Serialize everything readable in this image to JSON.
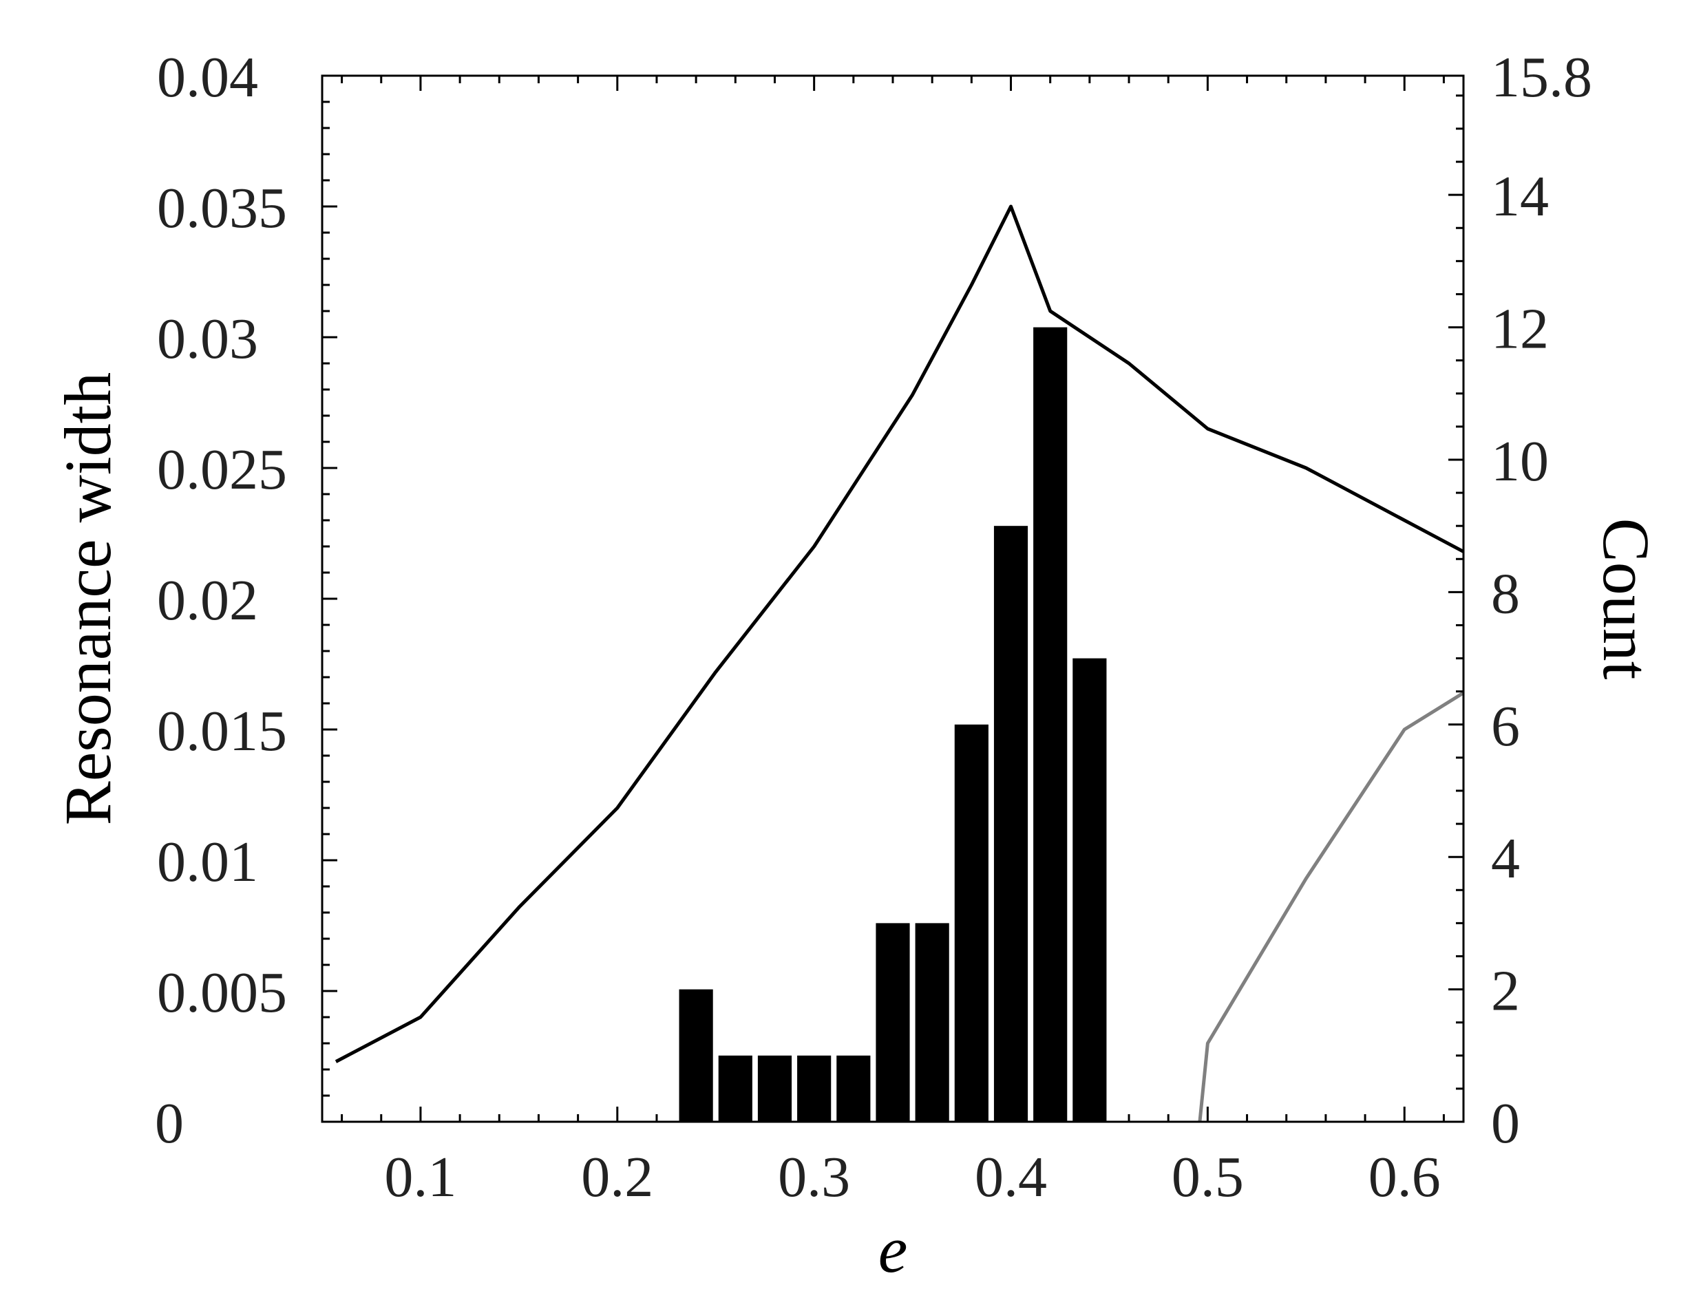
{
  "chart_data": {
    "type": "bar",
    "title": "",
    "xlabel": "e",
    "ylabel_left": "Resonance width",
    "ylabel_right": "Count",
    "xlim": [
      0.05,
      0.63
    ],
    "ylim_left": [
      0,
      0.04
    ],
    "ylim_right": [
      0,
      15.8
    ],
    "grid": false,
    "legend": "none",
    "x_ticks": [
      {
        "value": 0.1,
        "label": "0.1"
      },
      {
        "value": 0.2,
        "label": "0.2"
      },
      {
        "value": 0.3,
        "label": "0.3"
      },
      {
        "value": 0.4,
        "label": "0.4"
      },
      {
        "value": 0.5,
        "label": "0.5"
      },
      {
        "value": 0.6,
        "label": "0.6"
      }
    ],
    "y_left_ticks": [
      {
        "value": 0,
        "label": "0"
      },
      {
        "value": 0.005,
        "label": "0.005"
      },
      {
        "value": 0.01,
        "label": "0.01"
      },
      {
        "value": 0.015,
        "label": "0.015"
      },
      {
        "value": 0.02,
        "label": "0.02"
      },
      {
        "value": 0.025,
        "label": "0.025"
      },
      {
        "value": 0.03,
        "label": "0.03"
      },
      {
        "value": 0.035,
        "label": "0.035"
      },
      {
        "value": 0.04,
        "label": "0.04"
      }
    ],
    "y_right_ticks": [
      {
        "value": 0,
        "label": "0"
      },
      {
        "value": 2,
        "label": "2"
      },
      {
        "value": 4,
        "label": "4"
      },
      {
        "value": 6,
        "label": "6"
      },
      {
        "value": 8,
        "label": "8"
      },
      {
        "value": 10,
        "label": "10"
      },
      {
        "value": 12,
        "label": "12"
      },
      {
        "value": 14,
        "label": "14"
      },
      {
        "value": 15.8,
        "label": "15.8"
      }
    ],
    "histogram": {
      "axis": "right",
      "bin_width": 0.02,
      "color": "#000000",
      "bins": [
        {
          "x": 0.24,
          "count": 2
        },
        {
          "x": 0.26,
          "count": 1
        },
        {
          "x": 0.28,
          "count": 1
        },
        {
          "x": 0.3,
          "count": 1
        },
        {
          "x": 0.32,
          "count": 1
        },
        {
          "x": 0.34,
          "count": 3
        },
        {
          "x": 0.36,
          "count": 3
        },
        {
          "x": 0.38,
          "count": 6
        },
        {
          "x": 0.4,
          "count": 9
        },
        {
          "x": 0.42,
          "count": 12
        },
        {
          "x": 0.44,
          "count": 7
        }
      ]
    },
    "series": [
      {
        "axis": "left",
        "color": "#000000",
        "x": [
          0.057,
          0.1,
          0.15,
          0.2,
          0.25,
          0.3,
          0.35,
          0.38,
          0.4,
          0.42,
          0.46,
          0.5,
          0.55,
          0.6,
          0.63
        ],
        "y": [
          0.0023,
          0.004,
          0.0082,
          0.012,
          0.0172,
          0.022,
          0.0278,
          0.032,
          0.035,
          0.031,
          0.029,
          0.0265,
          0.025,
          0.023,
          0.0218
        ]
      },
      {
        "axis": "left",
        "color": "#808080",
        "x": [
          0.496,
          0.5,
          0.55,
          0.6,
          0.63
        ],
        "y": [
          0.0,
          0.003,
          0.0093,
          0.015,
          0.0164
        ]
      }
    ]
  }
}
